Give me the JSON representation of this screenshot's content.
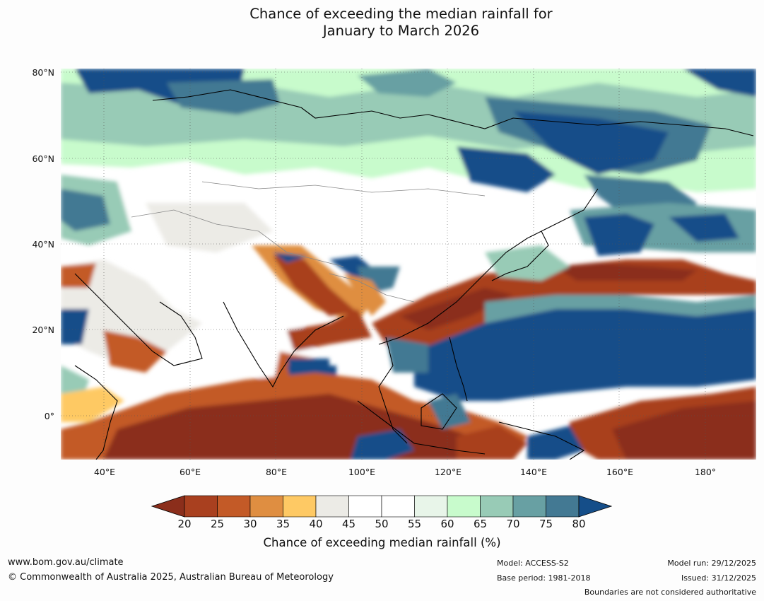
{
  "title": {
    "line1": "Chance of exceeding the median rainfall for",
    "line2": "January to March 2026"
  },
  "map": {
    "lat_labels": [
      "80°N",
      "60°N",
      "40°N",
      "20°N",
      "0°"
    ],
    "lon_labels": [
      "40°E",
      "60°E",
      "80°E",
      "100°E",
      "120°E",
      "140°E",
      "160°E",
      "180°"
    ],
    "region": "Asia and western Pacific"
  },
  "colorbar": {
    "ticks": [
      "20",
      "25",
      "30",
      "35",
      "40",
      "45",
      "50",
      "55",
      "60",
      "65",
      "70",
      "75",
      "80"
    ],
    "colors": [
      "#8b2e1b",
      "#a9401f",
      "#c35a27",
      "#df8e41",
      "#fec964",
      "#ecebe6",
      "#ffffff",
      "#ffffff",
      "#e8f5e9",
      "#c8fbcc",
      "#98cbb6",
      "#68a0a3",
      "#437993",
      "#154e89"
    ],
    "title": "Chance of exceeding median rainfall (%)"
  },
  "footer": {
    "url": "www.bom.gov.au/climate",
    "copyright": "© Commonwealth of Australia 2025, Australian Bureau of Meteorology",
    "model": "Model: ACCESS-S2",
    "base_period": "Base period: 1981-2018",
    "model_run": "Model run: 29/12/2025",
    "issued": "Issued: 31/12/2025",
    "disclaimer": "Boundaries are not considered authoritative"
  }
}
